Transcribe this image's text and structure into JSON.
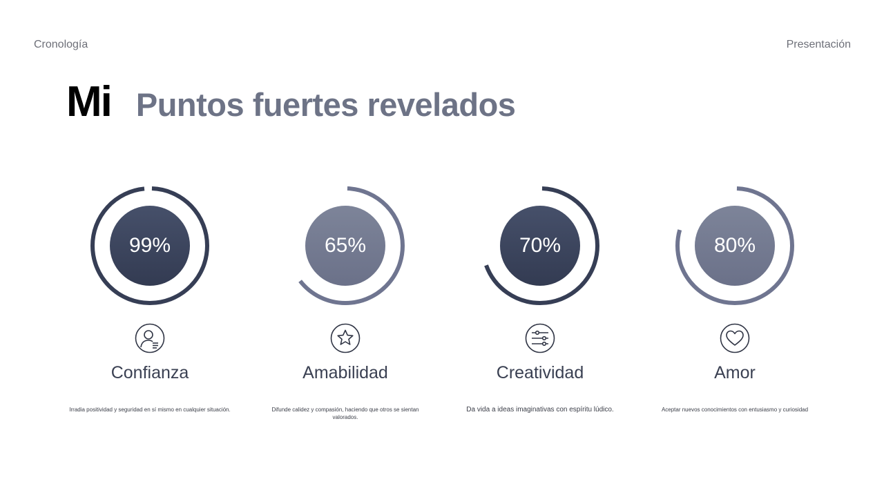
{
  "nav": {
    "left": "Cronología",
    "right": "Presentación"
  },
  "title": {
    "prefix": "Mi",
    "main": "Puntos fuertes revelados"
  },
  "colors": {
    "dark": "#363e55",
    "light": "#6f7590",
    "title": "#6d7386"
  },
  "cards": [
    {
      "percent": "99%",
      "value": 99,
      "label": "Confianza",
      "icon": "user-icon",
      "tone": "dark",
      "desc": "Irradia positividad y seguridad en sí mismo en cualquier situación."
    },
    {
      "percent": "65%",
      "value": 65,
      "label": "Amabilidad",
      "icon": "star-icon",
      "tone": "light",
      "desc": "Difunde calidez y compasión, haciendo que otros se sientan valorados."
    },
    {
      "percent": "70%",
      "value": 70,
      "label": "Creatividad",
      "icon": "sliders-icon",
      "tone": "dark",
      "desc": "Da vida a ideas imaginativas con espíritu lúdico."
    },
    {
      "percent": "80%",
      "value": 80,
      "label": "Amor",
      "icon": "heart-icon",
      "tone": "light",
      "desc": "Aceptar nuevos conocimientos con entusiasmo y curiosidad"
    }
  ]
}
